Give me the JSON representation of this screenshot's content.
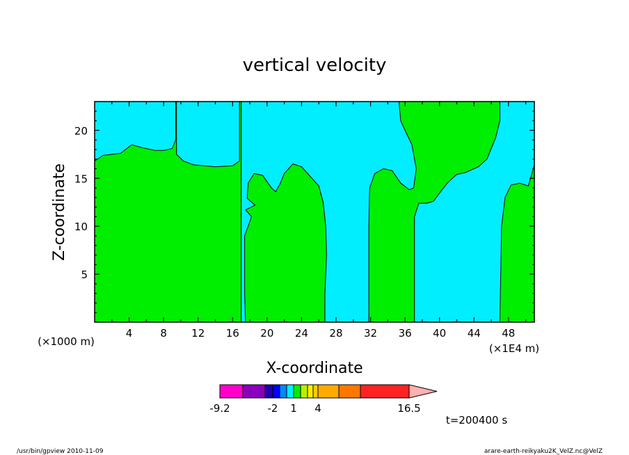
{
  "chart_data": {
    "type": "heatmap",
    "title": "vertical velocity",
    "xlabel": "X-coordinate",
    "ylabel": "Z-coordinate",
    "x_unit_left": "(×1000 m)",
    "x_unit_right": "(×1E4 m)",
    "xlim": [
      0,
      51
    ],
    "ylim": [
      0,
      23
    ],
    "xticks": [
      "4",
      "8",
      "12",
      "16",
      "20",
      "24",
      "28",
      "32",
      "36",
      "40",
      "44",
      "48"
    ],
    "yticks": [
      "5",
      "10",
      "15",
      "20"
    ],
    "background_color": "#00eeff",
    "region_color": "#00ee00",
    "regions": [
      {
        "name": "green-region-1",
        "points": [
          [
            0,
            0
          ],
          [
            0,
            16.8
          ],
          [
            1,
            17.4
          ],
          [
            3,
            17.6
          ],
          [
            4.3,
            18.5
          ],
          [
            5.5,
            18.2
          ],
          [
            7,
            17.9
          ],
          [
            8,
            17.9
          ],
          [
            9,
            18.1
          ],
          [
            9.4,
            19
          ],
          [
            9.4,
            23
          ],
          [
            9.5,
            23
          ],
          [
            9.5,
            17.5
          ],
          [
            10.3,
            16.8
          ],
          [
            11.5,
            16.4
          ],
          [
            14,
            16.2
          ],
          [
            16,
            16.3
          ],
          [
            16.8,
            16.8
          ],
          [
            16.8,
            23
          ],
          [
            17,
            23
          ],
          [
            17,
            0
          ],
          [
            9.2,
            0
          ]
        ],
        "mode": "split"
      },
      {
        "name": "green-region-2",
        "points": [
          [
            17.5,
            0
          ],
          [
            17.4,
            3
          ],
          [
            17.4,
            7
          ],
          [
            17.4,
            9
          ],
          [
            17.8,
            10
          ],
          [
            18.2,
            11
          ],
          [
            17.5,
            11.7
          ],
          [
            18.6,
            12.2
          ],
          [
            17.7,
            12.9
          ],
          [
            17.8,
            14.5
          ],
          [
            18.5,
            15.5
          ],
          [
            19.5,
            15.3
          ],
          [
            20.5,
            14
          ],
          [
            21,
            13.6
          ],
          [
            21.5,
            14.4
          ],
          [
            22,
            15.5
          ],
          [
            23,
            16.5
          ],
          [
            24,
            16.2
          ],
          [
            25,
            15.2
          ],
          [
            26,
            14.2
          ],
          [
            26.5,
            12.5
          ],
          [
            26.8,
            10
          ],
          [
            26.9,
            7
          ],
          [
            26.7,
            3
          ],
          [
            26.7,
            0
          ]
        ]
      },
      {
        "name": "green-region-3",
        "points": [
          [
            31.8,
            0
          ],
          [
            31.8,
            5
          ],
          [
            31.8,
            10
          ],
          [
            31.9,
            14
          ],
          [
            32.5,
            15.5
          ],
          [
            33.5,
            16
          ],
          [
            34.5,
            15.8
          ],
          [
            35.5,
            14.5
          ],
          [
            36.5,
            13.8
          ],
          [
            37,
            14
          ],
          [
            37.3,
            16
          ],
          [
            36.8,
            18.5
          ],
          [
            36,
            20
          ],
          [
            35.5,
            21
          ],
          [
            35.3,
            23
          ],
          [
            47,
            23
          ],
          [
            47,
            21
          ],
          [
            46.5,
            19.2
          ],
          [
            45.5,
            17
          ],
          [
            44.5,
            16.2
          ],
          [
            43,
            15.6
          ],
          [
            42,
            15.4
          ],
          [
            41,
            14.6
          ],
          [
            40.2,
            13.7
          ],
          [
            39.3,
            12.6
          ],
          [
            38.5,
            12.4
          ],
          [
            37.6,
            12.4
          ],
          [
            37.1,
            11
          ],
          [
            37.1,
            5
          ],
          [
            37.1,
            0
          ]
        ]
      },
      {
        "name": "green-region-4",
        "points": [
          [
            47,
            0
          ],
          [
            47.1,
            5
          ],
          [
            47.2,
            10
          ],
          [
            47.6,
            13
          ],
          [
            48.3,
            14.3
          ],
          [
            49.3,
            14.5
          ],
          [
            50.3,
            14.2
          ],
          [
            51,
            16.4
          ],
          [
            51,
            0
          ]
        ]
      }
    ],
    "colorbar": {
      "labels": [
        "-9.2",
        "-2",
        "1",
        "4",
        "16.5"
      ],
      "colors": [
        "#ff00cc",
        "#8800bb",
        "#2200aa",
        "#0000ff",
        "#0088ff",
        "#00eeff",
        "#00ee00",
        "#bbee00",
        "#ffee00",
        "#ffcc00",
        "#ffaa00",
        "#ff7700",
        "#ff2222",
        "#ff8080",
        "#ffb0b0"
      ]
    },
    "time_label": "t=200400 s"
  },
  "footer": {
    "left": "/usr/bin/gpview  2010-11-09",
    "right": "arare-earth-reikyaku2K_VelZ.nc@VelZ"
  }
}
